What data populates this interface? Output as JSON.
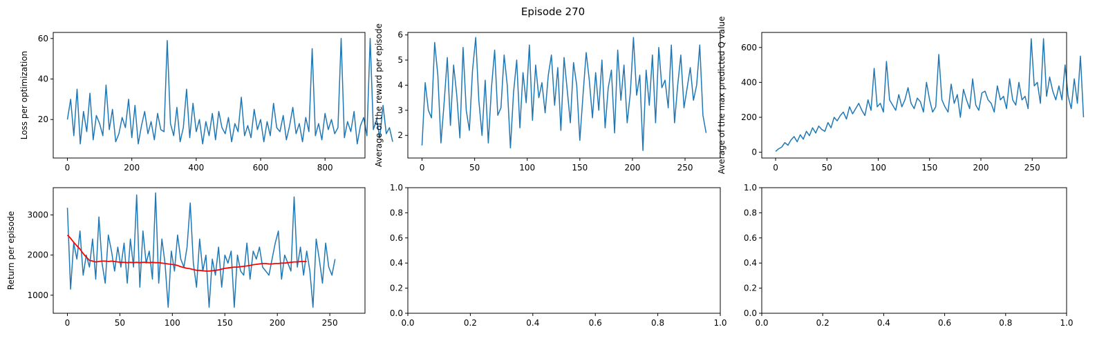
{
  "figure": {
    "suptitle": "Episode 270"
  },
  "colors": {
    "line": "#1f77b4",
    "moving_average": "#ff0000",
    "axes": "#000000",
    "background": "#ffffff"
  },
  "chart_data": [
    {
      "type": "line",
      "ylabel": "Loss per optimization",
      "xlim": [
        -44,
        924
      ],
      "ylim": [
        1,
        63
      ],
      "xticks": [
        0,
        200,
        400,
        600,
        800
      ],
      "yticks": [
        20,
        40,
        60
      ],
      "series": [
        {
          "x_start": 0,
          "x_step": 10,
          "values": [
            20,
            30,
            12,
            35,
            8,
            24,
            14,
            33,
            10,
            22,
            18,
            12,
            37,
            15,
            25,
            9,
            13,
            21,
            16,
            30,
            11,
            27,
            8,
            17,
            24,
            13,
            19,
            10,
            23,
            15,
            14,
            59,
            18,
            12,
            26,
            9,
            16,
            35,
            11,
            28,
            14,
            20,
            8,
            19,
            12,
            23,
            10,
            24,
            16,
            13,
            21,
            9,
            18,
            14,
            31,
            12,
            17,
            11,
            25,
            15,
            20,
            9,
            19,
            12,
            28,
            16,
            14,
            22,
            10,
            17,
            26,
            13,
            18,
            9,
            21,
            14,
            55,
            12,
            18,
            10,
            23,
            15,
            20,
            13,
            16,
            60,
            11,
            19,
            14,
            24,
            8,
            17,
            21,
            12,
            60,
            15,
            20,
            11,
            27,
            13,
            16,
            9
          ]
        }
      ]
    },
    {
      "type": "line",
      "ylabel": "Average of the reward per episode",
      "xlim": [
        -13.5,
        283.5
      ],
      "ylim": [
        1.1,
        6.1
      ],
      "xticks": [
        0,
        50,
        100,
        150,
        200,
        250
      ],
      "yticks": [
        2,
        3,
        4,
        5,
        6
      ],
      "series": [
        {
          "x_start": 0,
          "x_step": 3,
          "values": [
            1.6,
            4.1,
            3.0,
            2.7,
            5.7,
            4.4,
            1.7,
            3.3,
            5.1,
            2.4,
            4.8,
            3.6,
            1.9,
            5.5,
            3.0,
            2.2,
            4.6,
            5.9,
            3.4,
            2.0,
            4.2,
            1.7,
            3.9,
            5.4,
            2.8,
            3.1,
            5.2,
            4.0,
            1.5,
            3.7,
            5.0,
            2.3,
            4.5,
            3.3,
            5.6,
            2.6,
            4.8,
            3.5,
            4.1,
            2.9,
            4.4,
            5.2,
            3.2,
            4.7,
            2.2,
            5.1,
            3.8,
            2.5,
            4.9,
            4.0,
            1.8,
            3.6,
            5.3,
            4.2,
            2.7,
            4.5,
            3.0,
            5.0,
            2.3,
            3.9,
            4.6,
            2.1,
            5.4,
            3.4,
            4.8,
            2.5,
            3.7,
            5.9,
            3.6,
            4.4,
            1.4,
            4.6,
            3.2,
            5.2,
            2.5,
            5.5,
            3.9,
            4.2,
            3.1,
            5.6,
            2.5,
            4.0,
            5.2,
            3.1,
            3.9,
            4.7,
            3.4,
            4.0,
            5.6,
            2.8,
            2.1
          ]
        }
      ]
    },
    {
      "type": "line",
      "ylabel": "Average of the max predicted Q value",
      "xlim": [
        -13.5,
        283.5
      ],
      "ylim": [
        -33,
        686
      ],
      "xticks": [
        0,
        50,
        100,
        150,
        200,
        250
      ],
      "yticks": [
        0,
        200,
        400,
        600
      ],
      "series": [
        {
          "x_start": 0,
          "x_step": 3,
          "values": [
            5,
            20,
            30,
            55,
            40,
            70,
            90,
            60,
            100,
            75,
            120,
            95,
            140,
            110,
            150,
            130,
            120,
            170,
            140,
            200,
            180,
            210,
            230,
            190,
            260,
            220,
            250,
            280,
            240,
            210,
            300,
            240,
            480,
            260,
            280,
            230,
            520,
            300,
            270,
            240,
            330,
            260,
            300,
            370,
            280,
            250,
            310,
            290,
            230,
            400,
            300,
            230,
            260,
            560,
            300,
            260,
            230,
            390,
            280,
            330,
            200,
            360,
            300,
            250,
            420,
            270,
            240,
            340,
            350,
            300,
            280,
            230,
            380,
            300,
            320,
            250,
            420,
            300,
            270,
            400,
            300,
            320,
            250,
            650,
            380,
            400,
            280,
            650,
            320,
            430,
            350,
            300,
            380,
            300,
            500,
            320,
            250,
            420,
            280,
            550,
            200
          ]
        }
      ]
    },
    {
      "type": "line",
      "ylabel": "Return per episode",
      "xlim": [
        -13.5,
        283.5
      ],
      "ylim": [
        550,
        3680
      ],
      "xticks": [
        0,
        50,
        100,
        150,
        200,
        250
      ],
      "yticks": [
        1000,
        2000,
        3000
      ],
      "series": [
        {
          "name": "",
          "x_start": 0,
          "x_step": 3,
          "values": [
            3180,
            1150,
            2300,
            1900,
            2600,
            1500,
            2000,
            1700,
            2400,
            1400,
            2950,
            1800,
            1300,
            2500,
            2100,
            1600,
            2200,
            1700,
            2300,
            1300,
            2400,
            1700,
            3500,
            1200,
            2600,
            1800,
            2100,
            1400,
            3550,
            1300,
            2400,
            1800,
            700,
            2100,
            1600,
            2500,
            1900,
            1700,
            2200,
            3300,
            1800,
            1200,
            2400,
            1600,
            2000,
            700,
            1900,
            1500,
            2200,
            1200,
            2000,
            1800,
            2100,
            700,
            2000,
            1600,
            1500,
            2300,
            1400,
            2100,
            1900,
            2200,
            1700,
            1600,
            1500,
            1900,
            2300,
            2600,
            1400,
            2000,
            1800,
            1600,
            3450,
            1700,
            2200,
            1500,
            2100,
            1600,
            700,
            2400,
            1900,
            1300,
            2300,
            1700,
            1500,
            1900
          ]
        },
        {
          "name": "",
          "x_start": 0,
          "x_step": 3,
          "values": [
            2500,
            2420,
            2320,
            2230,
            2150,
            2040,
            1950,
            1870,
            1850,
            1830,
            1840,
            1850,
            1850,
            1840,
            1850,
            1840,
            1830,
            1820,
            1820,
            1810,
            1820,
            1810,
            1820,
            1810,
            1820,
            1820,
            1810,
            1820,
            1810,
            1810,
            1800,
            1790,
            1780,
            1770,
            1760,
            1740,
            1710,
            1690,
            1670,
            1660,
            1640,
            1620,
            1620,
            1610,
            1600,
            1600,
            1610,
            1620,
            1630,
            1650,
            1670,
            1680,
            1690,
            1700,
            1700,
            1710,
            1720,
            1730,
            1740,
            1760,
            1770,
            1780,
            1790,
            1790,
            1780,
            1780,
            1790,
            1790,
            1800,
            1800,
            1810,
            1820,
            1830,
            1830,
            1840,
            1840,
            1840
          ]
        }
      ]
    },
    {
      "type": "line",
      "xlim": [
        0,
        1
      ],
      "ylim": [
        0,
        1
      ],
      "xticks": [
        0,
        0.2,
        0.4,
        0.6,
        0.8,
        1.0
      ],
      "yticks": [
        0,
        0.2,
        0.4,
        0.6,
        0.8,
        1.0
      ],
      "series": []
    },
    {
      "type": "line",
      "xlim": [
        0,
        1
      ],
      "ylim": [
        0,
        1
      ],
      "xticks": [
        0,
        0.2,
        0.4,
        0.6,
        0.8,
        1.0
      ],
      "yticks": [
        0,
        0.2,
        0.4,
        0.6,
        0.8,
        1.0
      ],
      "series": []
    }
  ]
}
